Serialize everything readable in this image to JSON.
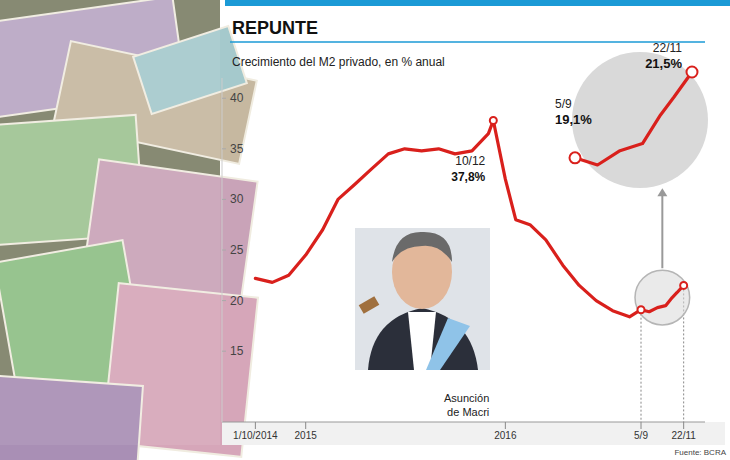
{
  "chart_data": {
    "type": "line",
    "title": "REPUNTE",
    "subtitle": "Crecimiento del M2 privado, en % anual",
    "source": "Fuente: BCRA",
    "color": "#d9201c",
    "grid": false,
    "x": [
      "2014-10-01",
      "2014-11-01",
      "2014-12-01",
      "2015-01-01",
      "2015-02-01",
      "2015-03-01",
      "2015-04-01",
      "2015-05-01",
      "2015-06-01",
      "2015-07-01",
      "2015-08-01",
      "2015-09-01",
      "2015-10-01",
      "2015-11-01",
      "2015-12-01",
      "2015-12-10",
      "2016-01-01",
      "2016-01-20",
      "2016-02-15",
      "2016-03-15",
      "2016-04-15",
      "2016-05-15",
      "2016-06-15",
      "2016-07-15",
      "2016-08-15",
      "2016-09-05",
      "2016-09-20",
      "2016-10-05",
      "2016-10-20",
      "2016-11-01",
      "2016-11-10",
      "2016-11-22"
    ],
    "values": [
      22.2,
      21.8,
      22.5,
      24.5,
      27,
      30,
      31.5,
      33,
      34.5,
      35,
      34.8,
      35,
      34.5,
      34.8,
      36.5,
      37.8,
      32,
      28,
      27.5,
      26,
      23.5,
      21.5,
      20,
      19,
      18.4,
      19.1,
      18.9,
      19.3,
      19.5,
      20.3,
      20.8,
      21.5
    ],
    "xlim": [
      "2014-08-01",
      "2016-12-31"
    ],
    "xticks": [
      {
        "value": "2014-10-01",
        "label": "1/10/2014"
      },
      {
        "value": "2015-01-01",
        "label": "2015"
      },
      {
        "value": "2016-01-01",
        "label": "2016"
      },
      {
        "value": "2016-09-05",
        "label": "5/9"
      },
      {
        "value": "2016-11-22",
        "label": "22/11"
      }
    ],
    "ylim": [
      8,
      42
    ],
    "yticks": [
      15,
      20,
      25,
      30,
      35,
      40
    ],
    "annotations": [
      {
        "x": "2015-12-10",
        "y": 37.8,
        "date_label": "10/12",
        "label": "37,8%"
      },
      {
        "x": "2015-12-10",
        "text": "Asunción de Macri"
      }
    ],
    "inset": {
      "x": [
        "2016-09-05",
        "2016-11-22"
      ],
      "annotations": [
        {
          "x": "2016-09-05",
          "y": 19.1,
          "date_label": "5/9",
          "label": "19,1%"
        },
        {
          "x": "2016-11-22",
          "y": 21.5,
          "date_label": "22/11",
          "label": "21,5%"
        }
      ]
    }
  }
}
